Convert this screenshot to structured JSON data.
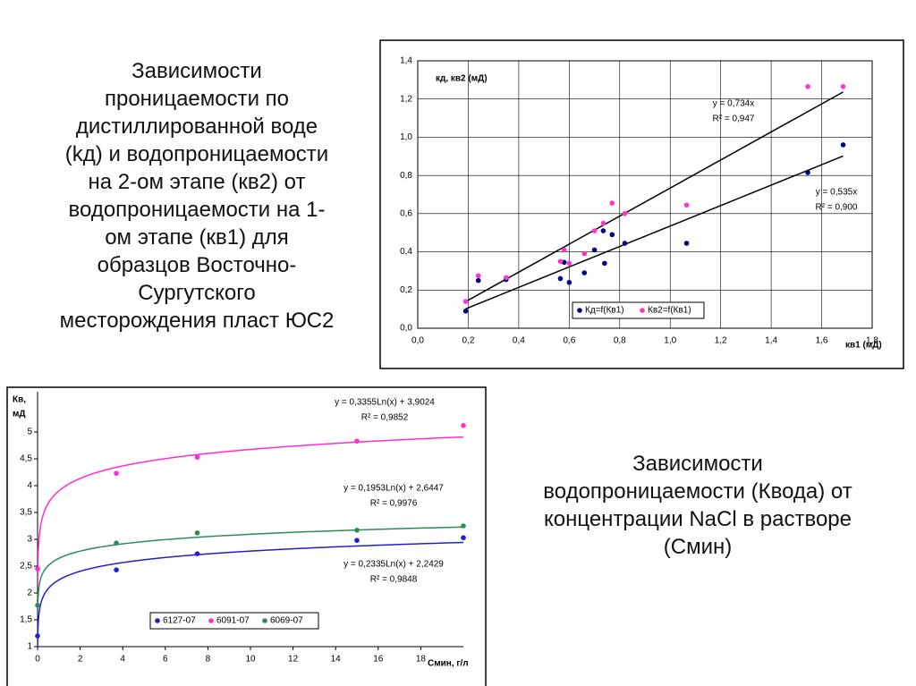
{
  "caption_left": [
    "Зависимости",
    "проницаемости по",
    "дистиллированной воде",
    "(kд) и водопроницаемости",
    "на 2-ом этапе (кв2) от",
    "водопроницаемости на 1-",
    "ом этапе (кв1) для",
    "образцов Восточно-",
    "Сургутского",
    "месторождения пласт ЮС2"
  ],
  "caption_right": [
    "Зависимости",
    "водопроницаемости (Квода) от",
    "концентрации NaCl в растворе",
    "(Смин)"
  ],
  "chart_data": [
    {
      "type": "scatter",
      "xlabel": "кв1 (мД)",
      "ylabel": [
        "кд, кв2 (мД)"
      ],
      "grid": true,
      "legend": "bottom-right",
      "xlim": [
        0,
        1.8
      ],
      "ylim": [
        0,
        1.4
      ],
      "xticks": [
        {
          "value": 0,
          "label": "0,0"
        },
        {
          "value": 0.2,
          "label": "0,2"
        },
        {
          "value": 0.4,
          "label": "0,4"
        },
        {
          "value": 0.6,
          "label": "0,6"
        },
        {
          "value": 0.8,
          "label": "0,8"
        },
        {
          "value": 1.0,
          "label": "1,0"
        },
        {
          "value": 1.2,
          "label": "1,2"
        },
        {
          "value": 1.4,
          "label": "1,4"
        },
        {
          "value": 1.6,
          "label": "1,6"
        },
        {
          "value": 1.8,
          "label": "1,8"
        }
      ],
      "yticks": [
        {
          "value": 0,
          "label": "0,0"
        },
        {
          "value": 0.2,
          "label": "0,2"
        },
        {
          "value": 0.4,
          "label": "0,4"
        },
        {
          "value": 0.6,
          "label": "0,6"
        },
        {
          "value": 0.8,
          "label": "0,8"
        },
        {
          "value": 1.0,
          "label": "1,0"
        },
        {
          "value": 1.2,
          "label": "1,2"
        },
        {
          "value": 1.4,
          "label": "1,4"
        }
      ],
      "series": [
        {
          "name": "Кд=f(Кв1)",
          "color": "#000080",
          "x": [
            0.19,
            0.24,
            0.35,
            0.565,
            0.58,
            0.6,
            0.66,
            0.7,
            0.735,
            0.74,
            0.77,
            0.82,
            1.065,
            1.545,
            1.685
          ],
          "values": [
            0.09,
            0.25,
            0.255,
            0.26,
            0.345,
            0.24,
            0.29,
            0.41,
            0.51,
            0.34,
            0.49,
            0.445,
            0.445,
            0.815,
            0.96
          ],
          "trendline": {
            "model": "linear",
            "slope": 0.535,
            "color": "#000000",
            "label": "y = 0,535x",
            "r2_label": "R² = 0,900"
          }
        },
        {
          "name": "Кв2=f(Кв1)",
          "color": "#ff33cc",
          "x": [
            0.19,
            0.24,
            0.35,
            0.565,
            0.58,
            0.6,
            0.66,
            0.7,
            0.735,
            0.77,
            0.82,
            1.065,
            1.545,
            1.685
          ],
          "values": [
            0.14,
            0.275,
            0.265,
            0.35,
            0.41,
            0.34,
            0.39,
            0.51,
            0.55,
            0.655,
            0.6,
            0.645,
            1.265,
            1.265
          ],
          "trendline": {
            "model": "linear",
            "slope": 0.734,
            "color": "#000000",
            "label": "y = 0,734x",
            "r2_label": "R² = 0,947"
          }
        }
      ]
    },
    {
      "type": "scatter",
      "xlabel": "Смин, г/л",
      "ylabel": [
        "Кв,",
        "мД"
      ],
      "grid": false,
      "legend": "bottom-left",
      "xlim": [
        0,
        20
      ],
      "ylim": [
        1,
        5.5
      ],
      "xticks": [
        0,
        2,
        4,
        6,
        8,
        10,
        12,
        14,
        16,
        18
      ],
      "yticks": [
        1,
        {
          "value": 1.5,
          "label": "1,5"
        },
        2,
        {
          "value": 2.5,
          "label": "2,5"
        },
        3,
        {
          "value": 3.5,
          "label": "3,5"
        },
        4,
        {
          "value": 4.5,
          "label": "4,5"
        },
        5
      ],
      "x": [
        0,
        3.7,
        7.5,
        15,
        20
      ],
      "series": [
        {
          "name": "6127-07",
          "color": "#1f1fd0",
          "values": [
            1.2,
            2.43,
            2.73,
            2.98,
            3.03
          ],
          "trendline": {
            "model": "log",
            "coef": 0.2335,
            "intercept": 2.2429,
            "color": "#1f1fd0",
            "label": "y = 0,2335Ln(x) + 2,2429",
            "r2_label": "R² = 0,9848"
          }
        },
        {
          "name": "6091-07",
          "color": "#ff2bd6",
          "values": [
            2.45,
            4.23,
            4.53,
            4.83,
            5.12
          ],
          "trendline": {
            "model": "log",
            "coef": 0.3355,
            "intercept": 3.9024,
            "color": "#ff2bd6",
            "label": "y = 0,3355Ln(x) + 3,9024",
            "r2_label": "R² = 0,9852"
          }
        },
        {
          "name": "6069-07",
          "color": "#2e8b57",
          "values": [
            1.77,
            2.93,
            3.12,
            3.17,
            3.25
          ],
          "trendline": {
            "model": "log",
            "coef": 0.1953,
            "intercept": 2.6447,
            "color": "#2e8b57",
            "label": "y = 0,1953Ln(x) + 2,6447",
            "r2_label": "R² = 0,9976"
          }
        }
      ]
    }
  ]
}
